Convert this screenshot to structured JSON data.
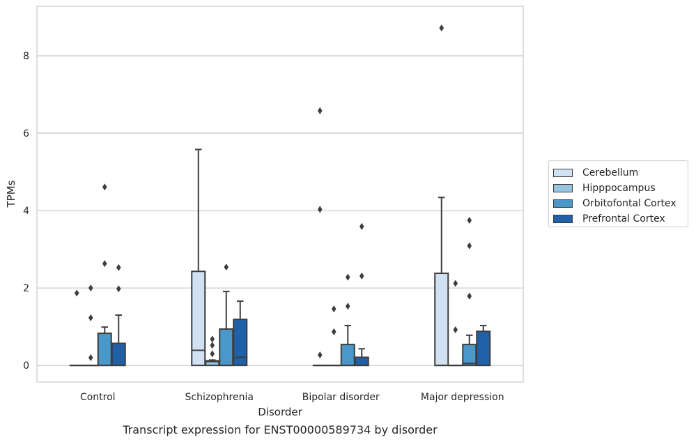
{
  "chart_data": {
    "type": "box",
    "title": "Transcript expression for ENST00000589734 by disorder",
    "xlabel": "Disorder",
    "ylabel": "TPMs",
    "ylim": [
      -0.43,
      9.28
    ],
    "yticks": [
      0,
      2,
      4,
      6,
      8
    ],
    "grid": "horizontal",
    "legend_position": "right",
    "categories": [
      "Control",
      "Schizophrenia",
      "Bipolar disorder",
      "Major depression"
    ],
    "series": [
      {
        "name": "Cerebellum",
        "color": "#d0e1f2",
        "boxes": [
          {
            "q1": 0,
            "median": 0,
            "q3": 0,
            "whisker_low": 0,
            "whisker_high": 0,
            "outliers": [
              1.87
            ]
          },
          {
            "q1": 0,
            "median": 0.39,
            "q3": 2.43,
            "whisker_low": 0,
            "whisker_high": 5.58,
            "outliers": []
          },
          {
            "q1": 0,
            "median": 0,
            "q3": 0,
            "whisker_low": 0,
            "whisker_high": 0,
            "outliers": [
              0.27,
              4.03,
              6.58
            ]
          },
          {
            "q1": 0,
            "median": 0,
            "q3": 2.38,
            "whisker_low": 0,
            "whisker_high": 4.34,
            "outliers": [
              8.72
            ]
          }
        ]
      },
      {
        "name": "Hipppocampus",
        "color": "#94c4df",
        "boxes": [
          {
            "q1": 0,
            "median": 0,
            "q3": 0,
            "whisker_low": 0,
            "whisker_high": 0,
            "outliers": [
              0.2,
              1.23,
              2.0
            ]
          },
          {
            "q1": 0,
            "median": 0.1,
            "q3": 0.12,
            "whisker_low": 0,
            "whisker_high": 0.14,
            "outliers": [
              0.3,
              0.52,
              0.68
            ]
          },
          {
            "q1": 0,
            "median": 0,
            "q3": 0,
            "whisker_low": 0,
            "whisker_high": 0,
            "outliers": [
              0.87,
              1.46
            ]
          },
          {
            "q1": 0,
            "median": 0,
            "q3": 0,
            "whisker_low": 0,
            "whisker_high": 0,
            "outliers": [
              0.92,
              2.12
            ]
          }
        ]
      },
      {
        "name": "Orbitofontal Cortex",
        "color": "#4a98c9",
        "boxes": [
          {
            "q1": 0,
            "median": 0,
            "q3": 0.83,
            "whisker_low": 0,
            "whisker_high": 0.99,
            "outliers": [
              2.63,
              4.61
            ]
          },
          {
            "q1": 0,
            "median": 0,
            "q3": 0.94,
            "whisker_low": 0,
            "whisker_high": 1.91,
            "outliers": [
              2.54
            ]
          },
          {
            "q1": 0,
            "median": 0,
            "q3": 0.54,
            "whisker_low": 0,
            "whisker_high": 1.03,
            "outliers": [
              1.53,
              2.28
            ]
          },
          {
            "q1": 0,
            "median": 0.05,
            "q3": 0.54,
            "whisker_low": 0,
            "whisker_high": 0.78,
            "outliers": [
              1.79,
              3.09,
              3.75
            ]
          }
        ]
      },
      {
        "name": "Prefrontal Cortex",
        "color": "#2060a8",
        "boxes": [
          {
            "q1": 0,
            "median": 0,
            "q3": 0.57,
            "whisker_low": 0,
            "whisker_high": 1.3,
            "outliers": [
              1.98,
              2.53
            ]
          },
          {
            "q1": 0,
            "median": 0.21,
            "q3": 1.19,
            "whisker_low": 0,
            "whisker_high": 1.66,
            "outliers": []
          },
          {
            "q1": 0,
            "median": 0,
            "q3": 0.21,
            "whisker_low": 0,
            "whisker_high": 0.43,
            "outliers": [
              2.31,
              3.59
            ]
          },
          {
            "q1": 0,
            "median": 0,
            "q3": 0.88,
            "whisker_low": 0,
            "whisker_high": 1.03,
            "outliers": []
          }
        ]
      }
    ]
  }
}
